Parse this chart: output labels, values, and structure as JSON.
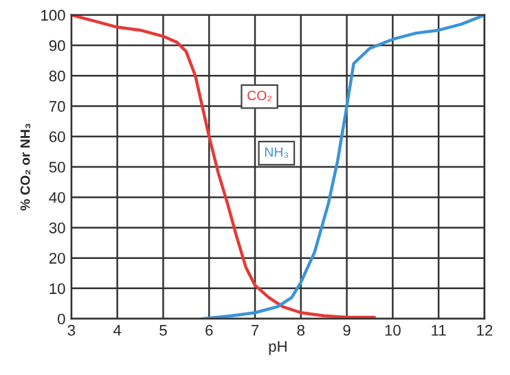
{
  "chart_data": {
    "type": "line",
    "xlabel": "pH",
    "ylabel": "% CO₂ or NH₃",
    "xlim": [
      3,
      12
    ],
    "ylim": [
      0,
      100
    ],
    "xticks": [
      3,
      4,
      5,
      6,
      7,
      8,
      9,
      10,
      11,
      12
    ],
    "yticks": [
      0,
      10,
      20,
      30,
      40,
      50,
      60,
      70,
      80,
      90,
      100
    ],
    "grid": true,
    "legend": false,
    "series": [
      {
        "name": "CO₂",
        "color": "#e53a36",
        "x": [
          3,
          3.5,
          4,
          4.5,
          5,
          5.3,
          5.5,
          5.7,
          5.85,
          6,
          6.2,
          6.4,
          6.6,
          6.8,
          7,
          7.3,
          7.6,
          8,
          8.5,
          9,
          9.6
        ],
        "values": [
          100,
          98,
          96,
          95,
          93,
          91,
          88,
          80,
          70,
          60,
          48,
          38,
          27,
          17,
          11,
          7,
          4,
          2,
          1,
          0.5,
          0.5
        ]
      },
      {
        "name": "NH₃",
        "color": "#3a94d8",
        "x": [
          5.85,
          6.5,
          7,
          7.5,
          7.8,
          8,
          8.3,
          8.6,
          8.8,
          9,
          9.15,
          9.5,
          10,
          10.5,
          11,
          11.5,
          12
        ],
        "values": [
          0,
          1,
          2,
          4,
          7,
          12,
          22,
          38,
          52,
          70,
          84,
          89,
          92,
          94,
          95,
          97,
          100
        ]
      }
    ]
  }
}
